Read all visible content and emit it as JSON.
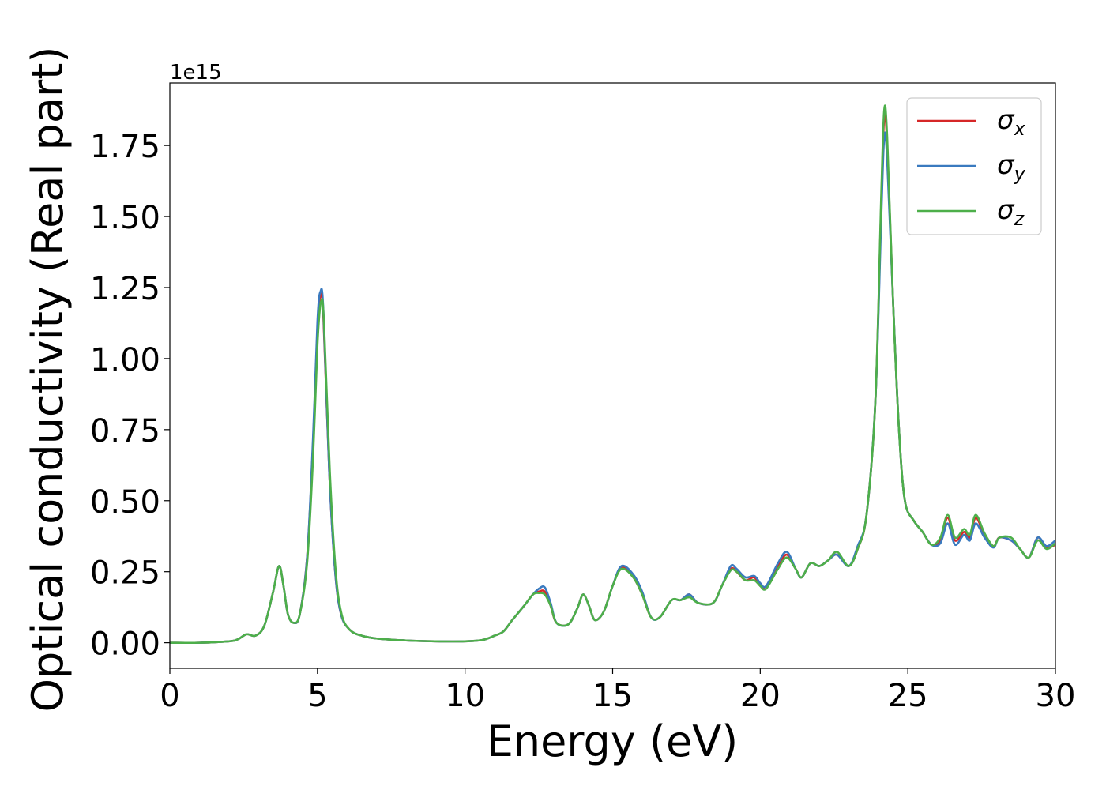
{
  "chart_data": {
    "type": "line",
    "title": "",
    "xlabel": "Energy (eV)",
    "ylabel": "Optical conductivity (Real part)",
    "y_offset_text": "1e15",
    "y_multiplier": 1000000000000000.0,
    "xlim": [
      0,
      30
    ],
    "ylim": [
      -0.09,
      1.97
    ],
    "x_ticks": [
      0,
      5,
      10,
      15,
      20,
      25,
      30
    ],
    "x_tick_labels": [
      "0",
      "5",
      "10",
      "15",
      "20",
      "25",
      "30"
    ],
    "y_ticks": [
      0.0,
      0.25,
      0.5,
      0.75,
      1.0,
      1.25,
      1.5,
      1.75
    ],
    "y_tick_labels": [
      "0.00",
      "0.25",
      "0.50",
      "0.75",
      "1.00",
      "1.25",
      "1.50",
      "1.75"
    ],
    "grid": false,
    "legend_position": "top-right",
    "series": [
      {
        "name": "σx",
        "label_base": "σ",
        "label_sub": "x",
        "color": "#d62728",
        "points": [
          [
            0,
            0
          ],
          [
            1,
            0
          ],
          [
            2,
            0.005
          ],
          [
            2.3,
            0.012
          ],
          [
            2.6,
            0.03
          ],
          [
            2.9,
            0.025
          ],
          [
            3.2,
            0.06
          ],
          [
            3.5,
            0.18
          ],
          [
            3.7,
            0.27
          ],
          [
            3.85,
            0.2
          ],
          [
            4.0,
            0.1
          ],
          [
            4.2,
            0.07
          ],
          [
            4.4,
            0.1
          ],
          [
            4.65,
            0.3
          ],
          [
            4.85,
            0.7
          ],
          [
            5.0,
            1.1
          ],
          [
            5.1,
            1.22
          ],
          [
            5.2,
            1.15
          ],
          [
            5.4,
            0.6
          ],
          [
            5.6,
            0.25
          ],
          [
            5.8,
            0.1
          ],
          [
            6.1,
            0.045
          ],
          [
            6.5,
            0.025
          ],
          [
            7,
            0.015
          ],
          [
            8,
            0.008
          ],
          [
            9,
            0.005
          ],
          [
            10,
            0.005
          ],
          [
            10.6,
            0.01
          ],
          [
            11,
            0.025
          ],
          [
            11.3,
            0.04
          ],
          [
            11.6,
            0.08
          ],
          [
            12,
            0.13
          ],
          [
            12.3,
            0.17
          ],
          [
            12.5,
            0.18
          ],
          [
            12.7,
            0.18
          ],
          [
            12.9,
            0.13
          ],
          [
            13.1,
            0.07
          ],
          [
            13.5,
            0.065
          ],
          [
            13.8,
            0.12
          ],
          [
            14.0,
            0.17
          ],
          [
            14.2,
            0.13
          ],
          [
            14.4,
            0.08
          ],
          [
            14.7,
            0.11
          ],
          [
            15.0,
            0.2
          ],
          [
            15.3,
            0.265
          ],
          [
            15.7,
            0.23
          ],
          [
            16.0,
            0.17
          ],
          [
            16.3,
            0.09
          ],
          [
            16.6,
            0.09
          ],
          [
            17.0,
            0.15
          ],
          [
            17.3,
            0.15
          ],
          [
            17.6,
            0.17
          ],
          [
            17.9,
            0.14
          ],
          [
            18.4,
            0.14
          ],
          [
            18.7,
            0.2
          ],
          [
            19.0,
            0.26
          ],
          [
            19.2,
            0.25
          ],
          [
            19.5,
            0.22
          ],
          [
            19.8,
            0.23
          ],
          [
            20.0,
            0.2
          ],
          [
            20.2,
            0.2
          ],
          [
            20.6,
            0.27
          ],
          [
            20.9,
            0.31
          ],
          [
            21.2,
            0.26
          ],
          [
            21.4,
            0.23
          ],
          [
            21.7,
            0.28
          ],
          [
            22.0,
            0.27
          ],
          [
            22.3,
            0.29
          ],
          [
            22.6,
            0.31
          ],
          [
            23.0,
            0.27
          ],
          [
            23.3,
            0.33
          ],
          [
            23.6,
            0.45
          ],
          [
            23.9,
            0.85
          ],
          [
            24.1,
            1.55
          ],
          [
            24.2,
            1.85
          ],
          [
            24.3,
            1.75
          ],
          [
            24.5,
            1.2
          ],
          [
            24.7,
            0.75
          ],
          [
            24.9,
            0.5
          ],
          [
            25.2,
            0.43
          ],
          [
            25.5,
            0.39
          ],
          [
            25.8,
            0.345
          ],
          [
            26.1,
            0.36
          ],
          [
            26.35,
            0.44
          ],
          [
            26.6,
            0.36
          ],
          [
            26.9,
            0.39
          ],
          [
            27.1,
            0.37
          ],
          [
            27.3,
            0.44
          ],
          [
            27.6,
            0.38
          ],
          [
            27.9,
            0.34
          ],
          [
            28.1,
            0.37
          ],
          [
            28.5,
            0.36
          ],
          [
            28.8,
            0.33
          ],
          [
            29.1,
            0.3
          ],
          [
            29.4,
            0.37
          ],
          [
            29.7,
            0.335
          ],
          [
            30,
            0.345
          ]
        ]
      },
      {
        "name": "σy",
        "label_base": "σ",
        "label_sub": "y",
        "color": "#3a7abf",
        "points": [
          [
            0,
            0
          ],
          [
            1,
            0
          ],
          [
            2,
            0.005
          ],
          [
            2.3,
            0.012
          ],
          [
            2.6,
            0.03
          ],
          [
            2.9,
            0.025
          ],
          [
            3.2,
            0.06
          ],
          [
            3.5,
            0.18
          ],
          [
            3.7,
            0.27
          ],
          [
            3.85,
            0.2
          ],
          [
            4.0,
            0.1
          ],
          [
            4.2,
            0.07
          ],
          [
            4.4,
            0.1
          ],
          [
            4.65,
            0.3
          ],
          [
            4.85,
            0.72
          ],
          [
            5.0,
            1.13
          ],
          [
            5.1,
            1.235
          ],
          [
            5.2,
            1.17
          ],
          [
            5.4,
            0.6
          ],
          [
            5.6,
            0.25
          ],
          [
            5.8,
            0.1
          ],
          [
            6.1,
            0.045
          ],
          [
            6.5,
            0.025
          ],
          [
            7,
            0.015
          ],
          [
            8,
            0.008
          ],
          [
            9,
            0.005
          ],
          [
            10,
            0.005
          ],
          [
            10.6,
            0.01
          ],
          [
            11,
            0.025
          ],
          [
            11.3,
            0.04
          ],
          [
            11.6,
            0.08
          ],
          [
            12,
            0.13
          ],
          [
            12.3,
            0.17
          ],
          [
            12.5,
            0.19
          ],
          [
            12.7,
            0.195
          ],
          [
            12.9,
            0.14
          ],
          [
            13.1,
            0.07
          ],
          [
            13.5,
            0.065
          ],
          [
            13.8,
            0.12
          ],
          [
            14.0,
            0.17
          ],
          [
            14.2,
            0.13
          ],
          [
            14.4,
            0.08
          ],
          [
            14.7,
            0.11
          ],
          [
            15.0,
            0.2
          ],
          [
            15.3,
            0.27
          ],
          [
            15.7,
            0.24
          ],
          [
            16.0,
            0.18
          ],
          [
            16.3,
            0.09
          ],
          [
            16.6,
            0.09
          ],
          [
            17.0,
            0.15
          ],
          [
            17.3,
            0.15
          ],
          [
            17.6,
            0.17
          ],
          [
            17.9,
            0.14
          ],
          [
            18.4,
            0.14
          ],
          [
            18.7,
            0.2
          ],
          [
            19.0,
            0.27
          ],
          [
            19.2,
            0.26
          ],
          [
            19.5,
            0.23
          ],
          [
            19.8,
            0.235
          ],
          [
            20.0,
            0.21
          ],
          [
            20.2,
            0.2
          ],
          [
            20.6,
            0.28
          ],
          [
            20.9,
            0.32
          ],
          [
            21.2,
            0.26
          ],
          [
            21.4,
            0.23
          ],
          [
            21.7,
            0.28
          ],
          [
            22.0,
            0.27
          ],
          [
            22.3,
            0.29
          ],
          [
            22.6,
            0.31
          ],
          [
            23.0,
            0.27
          ],
          [
            23.3,
            0.34
          ],
          [
            23.6,
            0.45
          ],
          [
            23.9,
            0.85
          ],
          [
            24.1,
            1.5
          ],
          [
            24.2,
            1.78
          ],
          [
            24.3,
            1.7
          ],
          [
            24.5,
            1.2
          ],
          [
            24.7,
            0.75
          ],
          [
            24.9,
            0.5
          ],
          [
            25.2,
            0.43
          ],
          [
            25.5,
            0.39
          ],
          [
            25.8,
            0.345
          ],
          [
            26.1,
            0.35
          ],
          [
            26.35,
            0.42
          ],
          [
            26.6,
            0.345
          ],
          [
            26.9,
            0.38
          ],
          [
            27.1,
            0.36
          ],
          [
            27.3,
            0.42
          ],
          [
            27.6,
            0.37
          ],
          [
            27.9,
            0.335
          ],
          [
            28.1,
            0.37
          ],
          [
            28.5,
            0.36
          ],
          [
            28.8,
            0.33
          ],
          [
            29.1,
            0.3
          ],
          [
            29.4,
            0.37
          ],
          [
            29.7,
            0.34
          ],
          [
            30,
            0.36
          ]
        ]
      },
      {
        "name": "σz",
        "label_base": "σ",
        "label_sub": "z",
        "color": "#4daf4a",
        "points": [
          [
            0,
            0
          ],
          [
            1,
            0
          ],
          [
            2,
            0.005
          ],
          [
            2.3,
            0.012
          ],
          [
            2.6,
            0.03
          ],
          [
            2.9,
            0.025
          ],
          [
            3.2,
            0.06
          ],
          [
            3.5,
            0.18
          ],
          [
            3.7,
            0.27
          ],
          [
            3.85,
            0.2
          ],
          [
            4.0,
            0.1
          ],
          [
            4.2,
            0.07
          ],
          [
            4.4,
            0.1
          ],
          [
            4.65,
            0.28
          ],
          [
            4.85,
            0.65
          ],
          [
            5.0,
            1.05
          ],
          [
            5.12,
            1.2
          ],
          [
            5.22,
            1.13
          ],
          [
            5.42,
            0.6
          ],
          [
            5.62,
            0.25
          ],
          [
            5.82,
            0.1
          ],
          [
            6.1,
            0.045
          ],
          [
            6.5,
            0.025
          ],
          [
            7,
            0.015
          ],
          [
            8,
            0.008
          ],
          [
            9,
            0.005
          ],
          [
            10,
            0.005
          ],
          [
            10.6,
            0.01
          ],
          [
            11,
            0.025
          ],
          [
            11.3,
            0.04
          ],
          [
            11.6,
            0.08
          ],
          [
            12,
            0.13
          ],
          [
            12.3,
            0.17
          ],
          [
            12.5,
            0.175
          ],
          [
            12.7,
            0.17
          ],
          [
            12.9,
            0.13
          ],
          [
            13.1,
            0.07
          ],
          [
            13.5,
            0.065
          ],
          [
            13.8,
            0.12
          ],
          [
            14.0,
            0.17
          ],
          [
            14.2,
            0.13
          ],
          [
            14.4,
            0.08
          ],
          [
            14.7,
            0.11
          ],
          [
            15.0,
            0.2
          ],
          [
            15.3,
            0.26
          ],
          [
            15.7,
            0.23
          ],
          [
            16.0,
            0.17
          ],
          [
            16.3,
            0.09
          ],
          [
            16.6,
            0.09
          ],
          [
            17.0,
            0.15
          ],
          [
            17.3,
            0.15
          ],
          [
            17.6,
            0.16
          ],
          [
            17.9,
            0.14
          ],
          [
            18.4,
            0.14
          ],
          [
            18.7,
            0.2
          ],
          [
            19.0,
            0.255
          ],
          [
            19.2,
            0.25
          ],
          [
            19.5,
            0.22
          ],
          [
            19.8,
            0.22
          ],
          [
            20.0,
            0.2
          ],
          [
            20.2,
            0.19
          ],
          [
            20.6,
            0.26
          ],
          [
            20.9,
            0.3
          ],
          [
            21.2,
            0.26
          ],
          [
            21.4,
            0.23
          ],
          [
            21.7,
            0.28
          ],
          [
            22.0,
            0.27
          ],
          [
            22.3,
            0.29
          ],
          [
            22.6,
            0.32
          ],
          [
            23.0,
            0.27
          ],
          [
            23.3,
            0.33
          ],
          [
            23.6,
            0.45
          ],
          [
            23.9,
            0.85
          ],
          [
            24.1,
            1.58
          ],
          [
            24.2,
            1.875
          ],
          [
            24.3,
            1.78
          ],
          [
            24.5,
            1.2
          ],
          [
            24.7,
            0.75
          ],
          [
            24.9,
            0.5
          ],
          [
            25.2,
            0.43
          ],
          [
            25.5,
            0.39
          ],
          [
            25.8,
            0.345
          ],
          [
            26.1,
            0.37
          ],
          [
            26.35,
            0.45
          ],
          [
            26.6,
            0.37
          ],
          [
            26.9,
            0.4
          ],
          [
            27.1,
            0.38
          ],
          [
            27.3,
            0.45
          ],
          [
            27.6,
            0.385
          ],
          [
            27.9,
            0.34
          ],
          [
            28.1,
            0.37
          ],
          [
            28.5,
            0.37
          ],
          [
            28.8,
            0.33
          ],
          [
            29.1,
            0.3
          ],
          [
            29.4,
            0.36
          ],
          [
            29.7,
            0.33
          ],
          [
            30,
            0.35
          ]
        ]
      }
    ]
  }
}
